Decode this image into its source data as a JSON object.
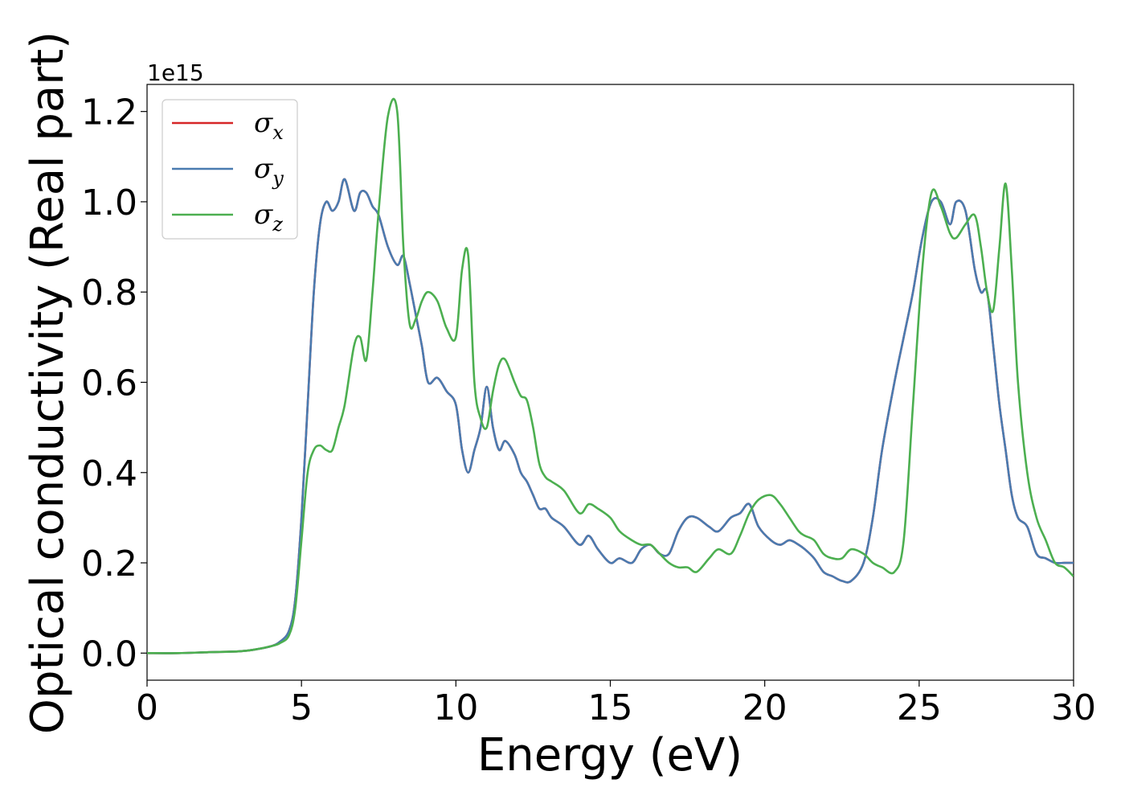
{
  "chart_data": {
    "type": "line",
    "title": "",
    "xlabel": "Energy (eV)",
    "ylabel": "Optical conductivity (Real part)",
    "y_offset_label": "1e15",
    "xlim": [
      0,
      30
    ],
    "ylim": [
      -0.06,
      1.26
    ],
    "xticks": [
      0,
      5,
      10,
      15,
      20,
      25,
      30
    ],
    "yticks": [
      0.0,
      0.2,
      0.4,
      0.6,
      0.8,
      1.0,
      1.2
    ],
    "xtick_labels": [
      "0",
      "5",
      "10",
      "15",
      "20",
      "25",
      "30"
    ],
    "ytick_labels": [
      "0.0",
      "0.2",
      "0.4",
      "0.6",
      "0.8",
      "1.0",
      "1.2"
    ],
    "grid": false,
    "legend_position": "top-left",
    "series": [
      {
        "name": "σ",
        "subscript": "x",
        "color": "#d62728",
        "x": [
          0,
          1,
          2,
          3,
          3.5,
          4,
          4.3,
          4.6,
          4.8,
          5.0,
          5.2,
          5.4,
          5.6,
          5.8,
          6.0,
          6.2,
          6.4,
          6.7,
          6.9,
          7.1,
          7.3,
          7.5,
          7.8,
          8.1,
          8.3,
          8.5,
          8.7,
          8.9,
          9.1,
          9.4,
          9.7,
          10.0,
          10.2,
          10.4,
          10.6,
          10.8,
          11.0,
          11.2,
          11.4,
          11.6,
          11.9,
          12.1,
          12.3,
          12.5,
          12.7,
          12.9,
          13.1,
          13.5,
          14.0,
          14.3,
          14.6,
          15.0,
          15.3,
          15.7,
          16.0,
          16.3,
          16.6,
          16.9,
          17.2,
          17.5,
          17.8,
          18.2,
          18.5,
          18.9,
          19.2,
          19.5,
          19.8,
          20.2,
          20.5,
          20.8,
          21.1,
          21.3,
          21.6,
          21.9,
          22.2,
          22.5,
          22.8,
          23.2,
          23.5,
          23.8,
          24.2,
          24.5,
          24.8,
          25.1,
          25.4,
          25.7,
          26.0,
          26.2,
          26.5,
          26.8,
          27.0,
          27.2,
          27.4,
          27.6,
          27.8,
          28.0,
          28.2,
          28.5,
          28.8,
          29.1,
          29.4,
          29.7,
          30.0
        ],
        "y": [
          0.0,
          0.0,
          0.002,
          0.004,
          0.008,
          0.015,
          0.025,
          0.05,
          0.12,
          0.3,
          0.55,
          0.8,
          0.95,
          1.0,
          0.98,
          1.0,
          1.05,
          0.98,
          1.02,
          1.02,
          0.99,
          0.97,
          0.9,
          0.86,
          0.88,
          0.82,
          0.75,
          0.68,
          0.6,
          0.61,
          0.58,
          0.55,
          0.45,
          0.4,
          0.45,
          0.5,
          0.59,
          0.5,
          0.45,
          0.47,
          0.44,
          0.4,
          0.38,
          0.35,
          0.32,
          0.32,
          0.3,
          0.28,
          0.24,
          0.26,
          0.23,
          0.2,
          0.21,
          0.2,
          0.23,
          0.24,
          0.22,
          0.22,
          0.27,
          0.3,
          0.3,
          0.28,
          0.27,
          0.3,
          0.31,
          0.33,
          0.28,
          0.25,
          0.24,
          0.25,
          0.24,
          0.23,
          0.21,
          0.18,
          0.17,
          0.16,
          0.16,
          0.2,
          0.3,
          0.45,
          0.6,
          0.7,
          0.8,
          0.92,
          1.0,
          1.0,
          0.95,
          1.0,
          0.98,
          0.85,
          0.8,
          0.8,
          0.68,
          0.55,
          0.45,
          0.35,
          0.3,
          0.28,
          0.22,
          0.21,
          0.2,
          0.2,
          0.2
        ]
      },
      {
        "name": "σ",
        "subscript": "y",
        "color": "#4a7bb0",
        "x": [
          0,
          1,
          2,
          3,
          3.5,
          4,
          4.3,
          4.6,
          4.8,
          5.0,
          5.2,
          5.4,
          5.6,
          5.8,
          6.0,
          6.2,
          6.4,
          6.7,
          6.9,
          7.1,
          7.3,
          7.5,
          7.8,
          8.1,
          8.3,
          8.5,
          8.7,
          8.9,
          9.1,
          9.4,
          9.7,
          10.0,
          10.2,
          10.4,
          10.6,
          10.8,
          11.0,
          11.2,
          11.4,
          11.6,
          11.9,
          12.1,
          12.3,
          12.5,
          12.7,
          12.9,
          13.1,
          13.5,
          14.0,
          14.3,
          14.6,
          15.0,
          15.3,
          15.7,
          16.0,
          16.3,
          16.6,
          16.9,
          17.2,
          17.5,
          17.8,
          18.2,
          18.5,
          18.9,
          19.2,
          19.5,
          19.8,
          20.2,
          20.5,
          20.8,
          21.1,
          21.3,
          21.6,
          21.9,
          22.2,
          22.5,
          22.8,
          23.2,
          23.5,
          23.8,
          24.2,
          24.5,
          24.8,
          25.1,
          25.4,
          25.7,
          26.0,
          26.2,
          26.5,
          26.8,
          27.0,
          27.2,
          27.4,
          27.6,
          27.8,
          28.0,
          28.2,
          28.5,
          28.8,
          29.1,
          29.4,
          29.7,
          30.0
        ],
        "y": [
          0.0,
          0.0,
          0.002,
          0.004,
          0.008,
          0.015,
          0.025,
          0.05,
          0.12,
          0.3,
          0.55,
          0.8,
          0.95,
          1.0,
          0.98,
          1.0,
          1.05,
          0.98,
          1.02,
          1.02,
          0.99,
          0.97,
          0.9,
          0.86,
          0.88,
          0.82,
          0.75,
          0.68,
          0.6,
          0.61,
          0.58,
          0.55,
          0.45,
          0.4,
          0.45,
          0.5,
          0.59,
          0.5,
          0.45,
          0.47,
          0.44,
          0.4,
          0.38,
          0.35,
          0.32,
          0.32,
          0.3,
          0.28,
          0.24,
          0.26,
          0.23,
          0.2,
          0.21,
          0.2,
          0.23,
          0.24,
          0.22,
          0.22,
          0.27,
          0.3,
          0.3,
          0.28,
          0.27,
          0.3,
          0.31,
          0.33,
          0.28,
          0.25,
          0.24,
          0.25,
          0.24,
          0.23,
          0.21,
          0.18,
          0.17,
          0.16,
          0.16,
          0.2,
          0.3,
          0.45,
          0.6,
          0.7,
          0.8,
          0.92,
          1.0,
          1.0,
          0.95,
          1.0,
          0.98,
          0.85,
          0.8,
          0.8,
          0.68,
          0.55,
          0.45,
          0.35,
          0.3,
          0.28,
          0.22,
          0.21,
          0.2,
          0.2,
          0.2
        ]
      },
      {
        "name": "σ",
        "subscript": "z",
        "color": "#4caf50",
        "x": [
          0,
          1,
          2,
          3,
          3.5,
          4,
          4.3,
          4.6,
          4.8,
          5.0,
          5.2,
          5.4,
          5.6,
          5.8,
          6.0,
          6.2,
          6.4,
          6.7,
          6.9,
          7.1,
          7.3,
          7.5,
          7.8,
          8.1,
          8.3,
          8.5,
          8.7,
          8.9,
          9.1,
          9.4,
          9.7,
          10.0,
          10.2,
          10.4,
          10.6,
          10.8,
          11.0,
          11.2,
          11.4,
          11.6,
          11.9,
          12.1,
          12.3,
          12.5,
          12.7,
          12.9,
          13.1,
          13.5,
          14.0,
          14.3,
          14.6,
          15.0,
          15.3,
          15.7,
          16.0,
          16.3,
          16.6,
          16.9,
          17.2,
          17.5,
          17.8,
          18.2,
          18.5,
          18.9,
          19.2,
          19.5,
          19.8,
          20.2,
          20.5,
          20.8,
          21.1,
          21.3,
          21.6,
          21.9,
          22.2,
          22.5,
          22.8,
          23.2,
          23.5,
          23.8,
          24.2,
          24.5,
          24.8,
          25.1,
          25.4,
          25.7,
          26.0,
          26.2,
          26.5,
          26.8,
          27.0,
          27.2,
          27.4,
          27.6,
          27.8,
          28.0,
          28.2,
          28.5,
          28.8,
          29.1,
          29.4,
          29.7,
          30.0
        ],
        "y": [
          0.0,
          0.0,
          0.002,
          0.004,
          0.008,
          0.015,
          0.022,
          0.04,
          0.1,
          0.25,
          0.4,
          0.45,
          0.46,
          0.45,
          0.45,
          0.5,
          0.55,
          0.68,
          0.7,
          0.65,
          0.8,
          0.98,
          1.19,
          1.2,
          0.9,
          0.73,
          0.74,
          0.78,
          0.8,
          0.78,
          0.72,
          0.7,
          0.85,
          0.88,
          0.6,
          0.52,
          0.5,
          0.58,
          0.64,
          0.65,
          0.6,
          0.57,
          0.56,
          0.5,
          0.42,
          0.39,
          0.38,
          0.36,
          0.31,
          0.33,
          0.32,
          0.3,
          0.27,
          0.25,
          0.24,
          0.24,
          0.22,
          0.2,
          0.19,
          0.19,
          0.18,
          0.21,
          0.23,
          0.22,
          0.26,
          0.31,
          0.34,
          0.35,
          0.33,
          0.3,
          0.27,
          0.26,
          0.25,
          0.22,
          0.21,
          0.21,
          0.23,
          0.22,
          0.2,
          0.19,
          0.18,
          0.25,
          0.55,
          0.85,
          1.02,
          0.99,
          0.93,
          0.92,
          0.95,
          0.97,
          0.9,
          0.8,
          0.76,
          0.9,
          1.04,
          0.85,
          0.6,
          0.4,
          0.3,
          0.25,
          0.2,
          0.19,
          0.17
        ]
      }
    ]
  }
}
